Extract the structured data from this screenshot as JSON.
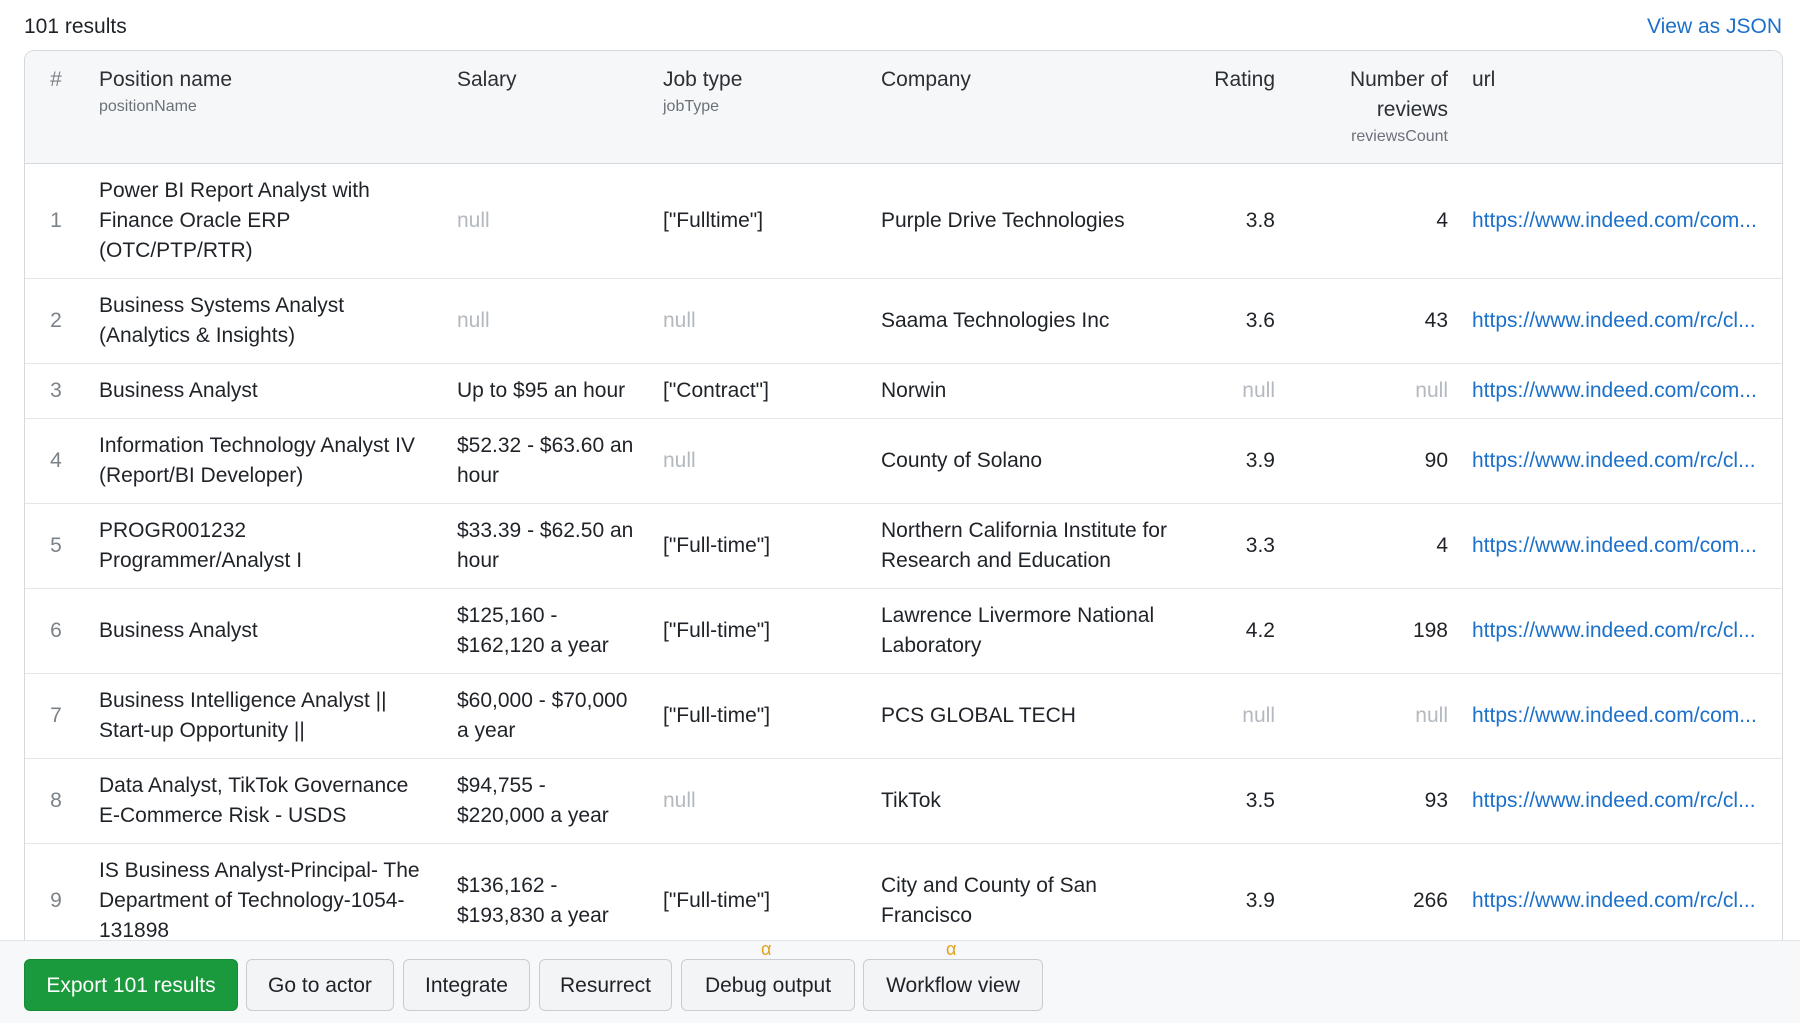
{
  "header": {
    "results_count": "101 results",
    "view_json": "View as JSON"
  },
  "table": {
    "columns": [
      {
        "label": "#",
        "sub": ""
      },
      {
        "label": "Position name",
        "sub": "positionName"
      },
      {
        "label": "Salary",
        "sub": ""
      },
      {
        "label": "Job type",
        "sub": "jobType"
      },
      {
        "label": "Company",
        "sub": ""
      },
      {
        "label": "Rating",
        "sub": ""
      },
      {
        "label": "Number of reviews",
        "sub": "reviewsCount"
      },
      {
        "label": "url",
        "sub": ""
      }
    ],
    "rows": [
      {
        "n": "1",
        "position": "Power BI Report Analyst with Finance Oracle ERP (OTC/PTP/RTR)",
        "salary": "null",
        "jobType": "[\"Fulltime\"]",
        "company": "Purple Drive Technologies",
        "rating": "3.8",
        "reviews": "4",
        "url": "https://www.indeed.com/com..."
      },
      {
        "n": "2",
        "position": "Business Systems Analyst (Analytics & Insights)",
        "salary": "null",
        "jobType": "null",
        "company": "Saama Technologies Inc",
        "rating": "3.6",
        "reviews": "43",
        "url": "https://www.indeed.com/rc/cl..."
      },
      {
        "n": "3",
        "position": "Business Analyst",
        "salary": "Up to $95 an hour",
        "jobType": "[\"Contract\"]",
        "company": "Norwin",
        "rating": "null",
        "reviews": "null",
        "url": "https://www.indeed.com/com..."
      },
      {
        "n": "4",
        "position": "Information Technology Analyst IV (Report/BI Developer)",
        "salary": "$52.32 - $63.60 an hour",
        "jobType": "null",
        "company": "County of Solano",
        "rating": "3.9",
        "reviews": "90",
        "url": "https://www.indeed.com/rc/cl..."
      },
      {
        "n": "5",
        "position": "PROGR001232 Programmer/Analyst I",
        "salary": "$33.39 - $62.50 an hour",
        "jobType": "[\"Full-time\"]",
        "company": "Northern California Institute for Research and Education",
        "rating": "3.3",
        "reviews": "4",
        "url": "https://www.indeed.com/com..."
      },
      {
        "n": "6",
        "position": "Business Analyst",
        "salary": "$125,160 - $162,120 a year",
        "jobType": "[\"Full-time\"]",
        "company": "Lawrence Livermore National Laboratory",
        "rating": "4.2",
        "reviews": "198",
        "url": "https://www.indeed.com/rc/cl..."
      },
      {
        "n": "7",
        "position": "Business Intelligence Analyst || Start-up Opportunity ||",
        "salary": "$60,000 - $70,000 a year",
        "jobType": "[\"Full-time\"]",
        "company": "PCS GLOBAL TECH",
        "rating": "null",
        "reviews": "null",
        "url": "https://www.indeed.com/com..."
      },
      {
        "n": "8",
        "position": "Data Analyst, TikTok Governance E-Commerce Risk - USDS",
        "salary": "$94,755 - $220,000 a year",
        "jobType": "null",
        "company": "TikTok",
        "rating": "3.5",
        "reviews": "93",
        "url": "https://www.indeed.com/rc/cl..."
      },
      {
        "n": "9",
        "position": "IS Business Analyst-Principal- The Department of Technology-1054-131898",
        "salary": "$136,162 - $193,830 a year",
        "jobType": "[\"Full-time\"]",
        "company": "City and County of San Francisco",
        "rating": "3.9",
        "reviews": "266",
        "url": "https://www.indeed.com/rc/cl..."
      }
    ]
  },
  "toolbar": {
    "export_label": "Export 101 results",
    "go_to_actor_label": "Go to actor",
    "integrate_label": "Integrate",
    "resurrect_label": "Resurrect",
    "debug_output_label": "Debug output",
    "workflow_view_label": "Workflow view",
    "alpha_badge": "α"
  }
}
